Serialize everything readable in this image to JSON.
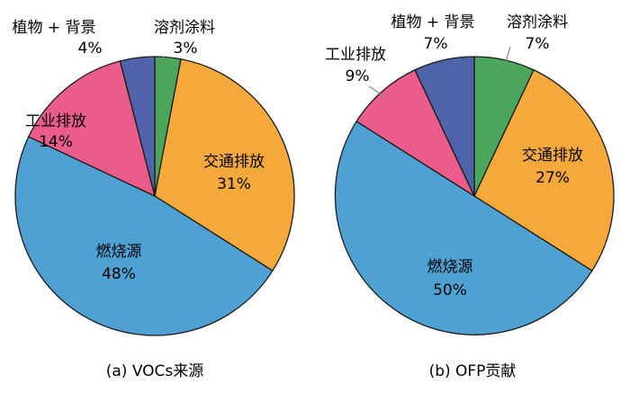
{
  "chart_data": [
    {
      "type": "pie",
      "title": "(a) VOCs来源",
      "slices": [
        {
          "label": "溶剂涂料",
          "value": 3,
          "value_label": "3%",
          "color": "#4aa65a"
        },
        {
          "label": "交通排放",
          "value": 31,
          "value_label": "31%",
          "color": "#f5a93a"
        },
        {
          "label": "燃烧源",
          "value": 48,
          "value_label": "48%",
          "color": "#4fa1d3"
        },
        {
          "label": "工业排放",
          "value": 14,
          "value_label": "14%",
          "color": "#ea5c8a"
        },
        {
          "label": "植物 + 背景",
          "value": 4,
          "value_label": "4%",
          "color": "#4f63ab"
        }
      ]
    },
    {
      "type": "pie",
      "title": "(b) OFP贡献",
      "slices": [
        {
          "label": "溶剂涂料",
          "value": 7,
          "value_label": "7%",
          "color": "#4aa65a"
        },
        {
          "label": "交通排放",
          "value": 27,
          "value_label": "27%",
          "color": "#f5a93a"
        },
        {
          "label": "燃烧源",
          "value": 50,
          "value_label": "50%",
          "color": "#4fa1d3"
        },
        {
          "label": "工业排放",
          "value": 9,
          "value_label": "9%",
          "color": "#ea5c8a"
        },
        {
          "label": "植物 + 背景",
          "value": 7,
          "value_label": "7%",
          "color": "#4f63ab"
        }
      ]
    }
  ]
}
